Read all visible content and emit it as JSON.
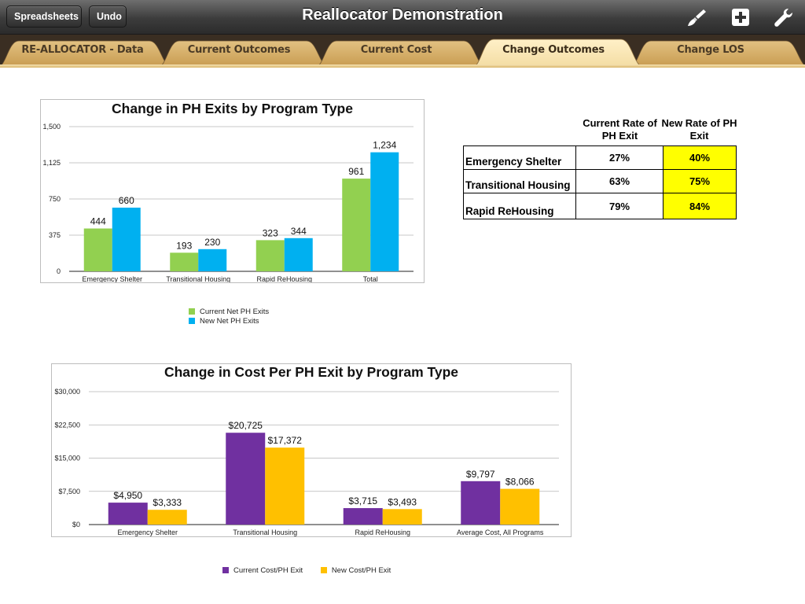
{
  "toolbar": {
    "spreadsheets_label": "Spreadsheets",
    "undo_label": "Undo",
    "title": "Reallocator Demonstration",
    "icons": [
      "paintbrush-icon",
      "add-icon",
      "wrench-icon"
    ]
  },
  "tabs": [
    {
      "label": "RE-ALLOCATOR - Data",
      "active": false
    },
    {
      "label": "Current Outcomes",
      "active": false
    },
    {
      "label": "Current Cost",
      "active": false
    },
    {
      "label": "Change Outcomes",
      "active": true
    },
    {
      "label": "Change LOS",
      "active": false
    }
  ],
  "colors": {
    "current_exits": "#92d050",
    "new_exits": "#00b0f0",
    "current_cost": "#7030a0",
    "new_cost": "#ffc000",
    "highlight": "#ffff00"
  },
  "chart_data": [
    {
      "type": "bar",
      "title": "Change in PH Exits by Program Type",
      "categories": [
        "Emergency Shelter",
        "Transitional Housing",
        "Rapid ReHousing",
        "Total"
      ],
      "series": [
        {
          "name": "Current Net PH Exits",
          "values": [
            444,
            193,
            323,
            961
          ],
          "labels": [
            "444",
            "193",
            "323",
            "961"
          ]
        },
        {
          "name": "New Net PH Exits",
          "values": [
            660,
            230,
            344,
            1234
          ],
          "labels": [
            "660",
            "230",
            "344",
            "1,234"
          ]
        }
      ],
      "ylim": [
        0,
        1500
      ],
      "yticks": [
        0,
        375,
        750,
        1125,
        1500
      ],
      "ytick_labels": [
        "0",
        "375",
        "750",
        "1,125",
        "1,500"
      ],
      "xlabel": "",
      "ylabel": "",
      "grid": true,
      "legend": "bottom-center"
    },
    {
      "type": "bar",
      "title": "Change in Cost Per PH Exit by Program Type",
      "categories": [
        "Emergency Shelter",
        "Transitional Housing",
        "Rapid ReHousing",
        "Average Cost, All Programs"
      ],
      "series": [
        {
          "name": "Current Cost/PH Exit",
          "values": [
            4950,
            20725,
            3715,
            9797
          ],
          "labels": [
            "$4,950",
            "$20,725",
            "$3,715",
            "$9,797"
          ]
        },
        {
          "name": "New Cost/PH Exit",
          "values": [
            3333,
            17372,
            3493,
            8066
          ],
          "labels": [
            "$3,333",
            "$17,372",
            "$3,493",
            "$8,066"
          ]
        }
      ],
      "ylim": [
        0,
        30000
      ],
      "yticks": [
        0,
        7500,
        15000,
        22500,
        30000
      ],
      "ytick_labels": [
        "$0",
        "$7,500",
        "$15,000",
        "$22,500",
        "$30,000"
      ],
      "xlabel": "",
      "ylabel": "",
      "grid": true,
      "legend": "bottom-center"
    }
  ],
  "rate_table": {
    "header_current": "Current Rate of PH Exit",
    "header_new": "New Rate of PH Exit",
    "rows": [
      {
        "program": "Emergency Shelter",
        "current": "27%",
        "new": "40%"
      },
      {
        "program": "Transitional Housing",
        "current": "63%",
        "new": "75%"
      },
      {
        "program": "Rapid ReHousing",
        "current": "79%",
        "new": "84%"
      }
    ]
  }
}
